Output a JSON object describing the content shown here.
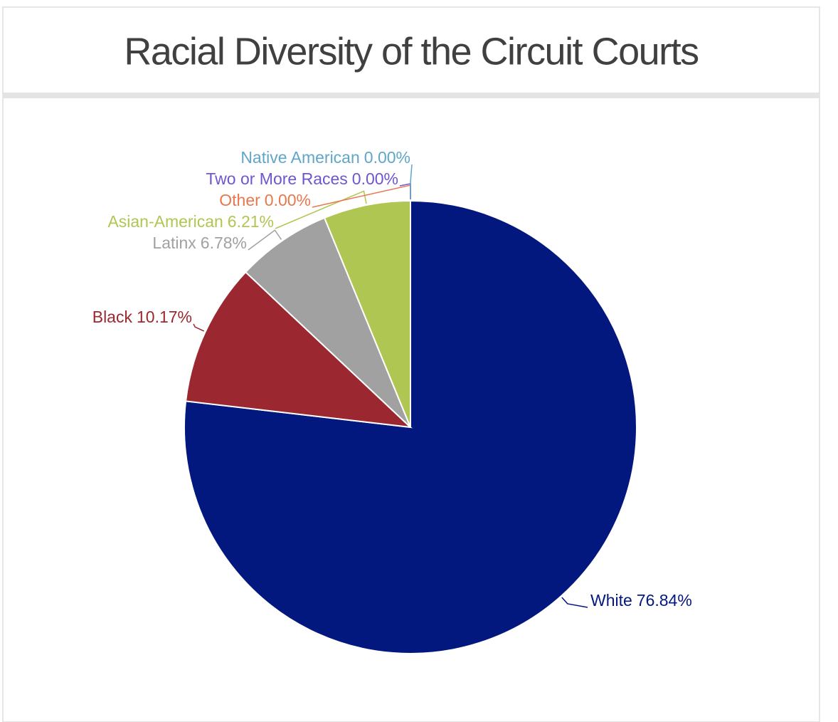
{
  "chart_data": {
    "type": "pie",
    "title": "Racial Diversity of the Circuit Courts",
    "categories": [
      "White",
      "Black",
      "Latinx",
      "Asian-American",
      "Other",
      "Two or More Races",
      "Native American"
    ],
    "values": [
      76.84,
      10.17,
      6.78,
      6.21,
      0,
      0,
      0
    ],
    "value_labels": [
      "76.84%",
      "10.17%",
      "6.78%",
      "6.21%",
      "0.00%",
      "0.00%",
      "0.00%"
    ],
    "colors": [
      "#03187f",
      "#9b2830",
      "#a1a1a1",
      "#b0c653",
      "#e8774e",
      "#6f55cf",
      "#5fa6c8"
    ]
  }
}
